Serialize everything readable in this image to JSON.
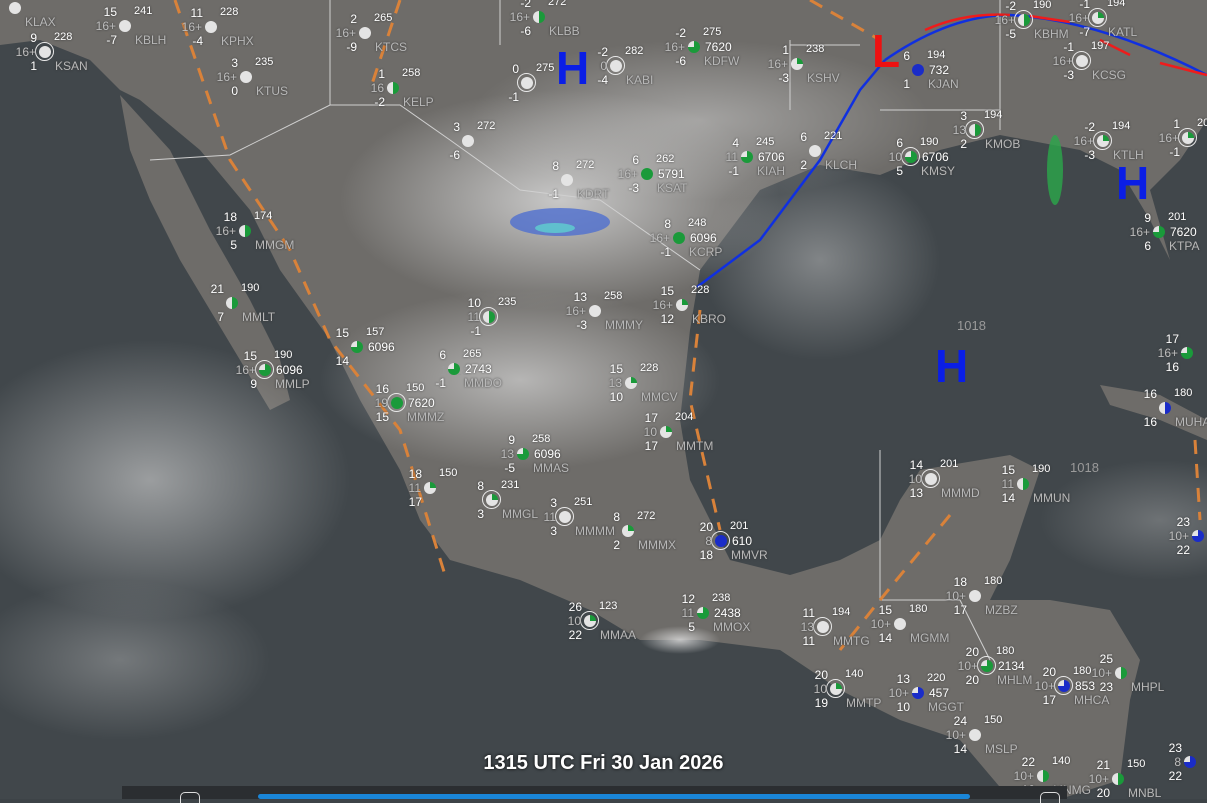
{
  "title": "1315 UTC Fri 30 Jan 2026",
  "colors": {
    "cold_front": "#1030e0",
    "warm_front": "#ee1c1c",
    "trough": "#d9823a",
    "high": "#0a1ee6",
    "low": "#ee1111",
    "sky_green": "#1a9a3a",
    "sky_blue": "#1a2cc8"
  },
  "pressure_centers": [
    {
      "label": "H",
      "type": "high"
    },
    {
      "label": "L",
      "type": "low"
    },
    {
      "label": "H",
      "type": "high"
    },
    {
      "label": "H",
      "type": "high"
    }
  ],
  "isobar_labels": [
    "1018",
    "1018",
    "1018"
  ],
  "timeline": {
    "progress_percent": 100
  },
  "stations": [
    {
      "id": "KLAX"
    },
    {
      "id": "KSAN",
      "t": "9",
      "v": "16+",
      "d": "1",
      "p": "228",
      "ring": true
    },
    {
      "id": "KBLH",
      "t": "15",
      "v": "16+",
      "d": "-7",
      "p": "241"
    },
    {
      "id": "KPHX",
      "t": "11",
      "v": "16+",
      "d": "-4",
      "p": "228"
    },
    {
      "id": "KTCS",
      "t": "2",
      "v": "16+",
      "d": "-9",
      "p": "265"
    },
    {
      "id": "KTUS",
      "t": "3",
      "v": "16+",
      "d": "0",
      "p": "235"
    },
    {
      "id": "KELP",
      "t": "1",
      "v": "16",
      "d": "-2",
      "p": "258",
      "cover": 0.5,
      "color": "green"
    },
    {
      "id": "KLBB",
      "t": "-2",
      "v": "16+",
      "d": "-6",
      "p": "272",
      "cover": 0.5,
      "color": "green"
    },
    {
      "t": "0",
      "d": "-1",
      "p": "275",
      "ring": true
    },
    {
      "id": "KABI",
      "t": "-2",
      "v": "0",
      "d": "-4",
      "p": "282",
      "ring": true
    },
    {
      "id": "KDFW",
      "t": "-2",
      "v": "16+",
      "d": "-6",
      "p": "275",
      "c": "7620",
      "cover": 0.75,
      "color": "green"
    },
    {
      "id": "KSHV",
      "t": "1",
      "v": "16+",
      "d": "-3",
      "p": "238",
      "cover": 0.25,
      "color": "green"
    },
    {
      "id": "KJAN",
      "t": "6",
      "d": "1",
      "p": "194",
      "c": "732",
      "cover": 1,
      "color": "blue"
    },
    {
      "id": "KBHM",
      "t": "-2",
      "v": "16+",
      "d": "-5",
      "p": "190",
      "cover": 0.5,
      "color": "green",
      "ring": true
    },
    {
      "id": "KATL",
      "t": "-1",
      "v": "16+",
      "d": "-7",
      "p": "194",
      "cover": 0.25,
      "color": "green",
      "ring": true
    },
    {
      "id": "KCSG",
      "t": "-1",
      "v": "16+",
      "d": "-3",
      "p": "197",
      "ring": true
    },
    {
      "id": "KMOB",
      "t": "3",
      "v": "13",
      "d": "2",
      "p": "194",
      "cover": 0.5,
      "color": "green",
      "ring": true
    },
    {
      "id": "KTLH",
      "t": "-2",
      "v": "16+",
      "d": "-3",
      "p": "194",
      "cover": 0.25,
      "color": "green",
      "ring": true
    },
    {
      "t": "1",
      "v": "16+",
      "d": "-1",
      "p": "20",
      "cover": 0.25,
      "color": "green",
      "ring": true
    },
    {
      "id": "KMSY",
      "t": "6",
      "v": "10",
      "d": "5",
      "p": "190",
      "c": "6706",
      "cover": 0.75,
      "color": "green",
      "ring": true
    },
    {
      "id": "KLCH",
      "t": "6",
      "d": "2",
      "p": "221"
    },
    {
      "id": "KIAH",
      "t": "4",
      "v": "11",
      "d": "-1",
      "p": "245",
      "c": "6706",
      "cover": 0.75,
      "color": "green"
    },
    {
      "id": "KSAT",
      "t": "6",
      "v": "16+",
      "d": "-3",
      "p": "262",
      "c": "5791",
      "cover": 1,
      "color": "green"
    },
    {
      "id": "KDRT",
      "t": "8",
      "d": "-1",
      "p": "272"
    },
    {
      "t": "3",
      "d": "-6",
      "p": "272"
    },
    {
      "id": "KCRP",
      "t": "8",
      "v": "16+",
      "d": "-1",
      "p": "248",
      "c": "6096",
      "cover": 1,
      "color": "green"
    },
    {
      "id": "KBRO",
      "t": "15",
      "v": "16+",
      "d": "12",
      "p": "228",
      "cover": 0.25,
      "color": "green"
    },
    {
      "id": "KTPA",
      "t": "9",
      "v": "16+",
      "d": "6",
      "p": "201",
      "c": "7620",
      "cover": 0.75,
      "color": "green"
    },
    {
      "id": "MMGM",
      "t": "18",
      "v": "16+",
      "d": "5",
      "p": "174",
      "cover": 0.5,
      "color": "green"
    },
    {
      "id": "MMLT",
      "t": "21",
      "d": "7",
      "p": "190",
      "cover": 0.5,
      "color": "green"
    },
    {
      "id": "MMLP",
      "t": "15",
      "v": "16+",
      "d": "9",
      "p": "190",
      "c": "6096",
      "cover": 0.75,
      "color": "green",
      "ring": true
    },
    {
      "t": "15",
      "d": "14",
      "p": "157",
      "c": "6096",
      "cover": 0.75,
      "color": "green"
    },
    {
      "id": "MMMZ",
      "t": "16",
      "v": "19",
      "d": "15",
      "p": "150",
      "c": "7620",
      "cover": 1,
      "color": "green",
      "ring": true
    },
    {
      "id": "MMDO",
      "t": "6",
      "d": "-1",
      "p": "265",
      "c": "2743",
      "cover": 0.75,
      "color": "green"
    },
    {
      "t": "10",
      "v": "11",
      "d": "-1",
      "p": "235",
      "cover": 0.5,
      "color": "green",
      "ring": true
    },
    {
      "id": "MMMY",
      "t": "13",
      "v": "16+",
      "d": "-3",
      "p": "258"
    },
    {
      "id": "MMCV",
      "t": "15",
      "v": "13",
      "d": "10",
      "p": "228",
      "cover": 0.25,
      "color": "green"
    },
    {
      "id": "MMTM",
      "t": "17",
      "v": "10",
      "d": "17",
      "p": "204",
      "cover": 0.25,
      "color": "green"
    },
    {
      "id": "MMAS",
      "t": "9",
      "v": "13",
      "d": "-5",
      "p": "258",
      "c": "6096",
      "cover": 0.75,
      "color": "green"
    },
    {
      "t": "18",
      "v": "11",
      "d": "17",
      "p": "150",
      "cover": 0.25,
      "color": "green"
    },
    {
      "id": "MMGL",
      "t": "8",
      "d": "3",
      "p": "231",
      "cover": 0.25,
      "color": "green",
      "ring": true
    },
    {
      "id": "MMMM",
      "t": "3",
      "v": "11",
      "d": "3",
      "p": "251",
      "ring": true
    },
    {
      "id": "MMMX",
      "t": "8",
      "d": "2",
      "p": "272",
      "cover": 0.25,
      "color": "green"
    },
    {
      "id": "MMVR",
      "t": "20",
      "v": "8",
      "d": "18",
      "p": "201",
      "c": "610",
      "cover": 1,
      "color": "blue",
      "ring": true
    },
    {
      "id": "MMMD",
      "t": "14",
      "v": "10",
      "d": "13",
      "p": "201",
      "ring": true
    },
    {
      "id": "MMUN",
      "t": "15",
      "v": "11",
      "d": "14",
      "p": "190",
      "cover": 0.5,
      "color": "green"
    },
    {
      "id": "MZBZ",
      "t": "18",
      "v": "10+",
      "d": "17",
      "p": "180"
    },
    {
      "id": "MGMM",
      "t": "15",
      "v": "10+",
      "d": "14",
      "p": "180"
    },
    {
      "id": "MMTG",
      "t": "11",
      "v": "13",
      "d": "11",
      "p": "194",
      "ring": true
    },
    {
      "id": "MMAA",
      "t": "26",
      "v": "10",
      "d": "22",
      "p": "123",
      "cover": 0.25,
      "color": "green",
      "ring": true
    },
    {
      "id": "MMOX",
      "t": "12",
      "v": "11",
      "d": "5",
      "p": "238",
      "c": "2438",
      "cover": 0.75,
      "color": "green"
    },
    {
      "id": "MMTP",
      "t": "20",
      "v": "10",
      "d": "19",
      "p": "140",
      "cover": 0.25,
      "color": "green",
      "ring": true
    },
    {
      "id": "MGGT",
      "t": "13",
      "v": "10+",
      "d": "10",
      "p": "220",
      "c": "457",
      "cover": 0.75,
      "color": "blue"
    },
    {
      "id": "MSLP",
      "t": "24",
      "v": "10+",
      "d": "14",
      "p": "150"
    },
    {
      "id": "MHLM",
      "t": "20",
      "v": "10+",
      "d": "20",
      "p": "180",
      "c": "2134",
      "cover": 0.75,
      "color": "green",
      "ring": true
    },
    {
      "id": "MHCA",
      "t": "20",
      "v": "10+",
      "d": "17",
      "p": "180",
      "c": "853",
      "cover": 0.75,
      "color": "blue",
      "ring": true
    },
    {
      "id": "MHPL",
      "t": "25",
      "v": "10+",
      "d": "23",
      "cover": 0.5,
      "color": "green"
    },
    {
      "id": "MNMG",
      "t": "22",
      "v": "10+",
      "d": "18",
      "p": "140",
      "cover": 0.5,
      "color": "green"
    },
    {
      "id": "MNBL",
      "t": "21",
      "v": "10+",
      "d": "20",
      "p": "150",
      "cover": 0.5,
      "color": "green"
    },
    {
      "t": "23",
      "v": "10+",
      "d": "22",
      "cover": 0.75,
      "color": "blue"
    },
    {
      "t": "16",
      "d": "16",
      "p": "180",
      "id": "MUHA",
      "cover": 0.5,
      "color": "blue"
    },
    {
      "t": "17",
      "v": "16+",
      "d": "16",
      "cover": 0.75,
      "color": "green"
    },
    {
      "t": "23",
      "v": "8",
      "d": "22",
      "cover": 0.75,
      "color": "blue"
    }
  ]
}
